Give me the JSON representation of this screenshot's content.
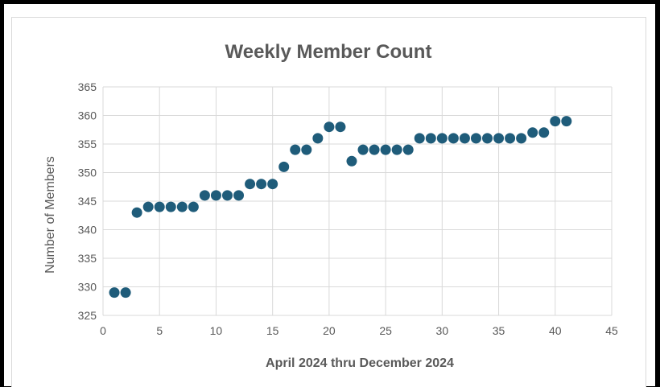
{
  "chart_data": {
    "type": "scatter",
    "title": "Weekly Member Count",
    "xlabel": "April 2024 thru December 2024",
    "ylabel": "Number of Members",
    "xlim": [
      0,
      45
    ],
    "ylim": [
      325,
      365
    ],
    "xticks": [
      0,
      5,
      10,
      15,
      20,
      25,
      30,
      35,
      40,
      45
    ],
    "yticks": [
      325,
      330,
      335,
      340,
      345,
      350,
      355,
      360,
      365
    ],
    "grid": true,
    "marker_color": "#1f5c7a",
    "series": [
      {
        "x": [
          1,
          2,
          3,
          4,
          5,
          6,
          7,
          8,
          9,
          10,
          11,
          12,
          13,
          14,
          15,
          16,
          17,
          18,
          19,
          20,
          21,
          22,
          23,
          24,
          25,
          26,
          27,
          28,
          29,
          30,
          31,
          32,
          33,
          34,
          35,
          36,
          37,
          38,
          39,
          40,
          41
        ],
        "y": [
          329,
          329,
          343,
          344,
          344,
          344,
          344,
          344,
          346,
          346,
          346,
          346,
          348,
          348,
          348,
          351,
          354,
          354,
          356,
          358,
          358,
          352,
          354,
          354,
          354,
          354,
          354,
          356,
          356,
          356,
          356,
          356,
          356,
          356,
          356,
          356,
          356,
          357,
          357,
          359,
          359
        ]
      }
    ]
  }
}
